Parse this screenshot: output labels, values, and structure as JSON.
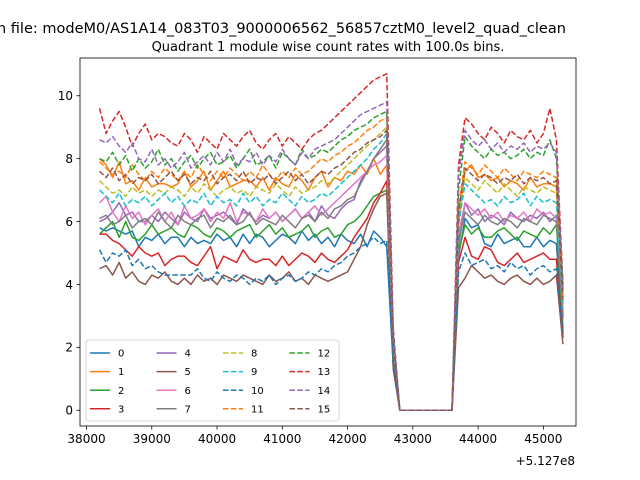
{
  "chart_data": {
    "type": "line",
    "suptitle": "n file: modeM0/AS1A14_083T03_9000006562_56857cztM0_level2_quad_clean",
    "title": "Quadrant 1 module wise count rates with 100.0s bins.",
    "xlabel": "",
    "ylabel": "",
    "offset_label": "+5.127e8",
    "xlim": [
      37900,
      45500
    ],
    "ylim": [
      -0.5,
      11.2
    ],
    "xticks": [
      38000,
      39000,
      40000,
      41000,
      42000,
      43000,
      44000,
      45000
    ],
    "yticks": [
      0,
      2,
      4,
      6,
      8,
      10
    ],
    "legend_position": "lower-left",
    "legend_columns": 4,
    "x_start": 38200,
    "x_step": 100,
    "series": [
      {
        "name": "0",
        "color": "#1f77b4",
        "style": "solid",
        "values": [
          5.8,
          5.7,
          5.8,
          5.7,
          5.6,
          5.7,
          5.2,
          5.5,
          5.4,
          5.6,
          5.3,
          5.5,
          5.5,
          5.2,
          5.5,
          5.3,
          5.4,
          5.3,
          5.6,
          5.4,
          5.5,
          5.2,
          5.6,
          5.3,
          5.6,
          5.5,
          5.2,
          5.4,
          5.6,
          5.5,
          5.3,
          5.7,
          5.4,
          5.6,
          5.3,
          5.5,
          5.2,
          5.6,
          5.4,
          5.3,
          5.6,
          5.2,
          5.7,
          5.5,
          5.2,
          1.4,
          0,
          0,
          0,
          0,
          0,
          0,
          0,
          0,
          0,
          4.9,
          6.1,
          5.8,
          5.9,
          5.3,
          5.2,
          5.6,
          5.3,
          5.4,
          5.5,
          5.2,
          5.2,
          5.5,
          5.2,
          5.4,
          5.3,
          2.4
        ]
      },
      {
        "name": "1",
        "color": "#ff7f0e",
        "style": "solid",
        "values": [
          8.0,
          7.8,
          7.4,
          7.9,
          7.2,
          7.3,
          7.0,
          7.4,
          7.1,
          7.2,
          7.2,
          7.1,
          7.2,
          7.6,
          7.1,
          7.3,
          7.6,
          7.0,
          7.3,
          7.6,
          7.1,
          7.2,
          7.3,
          7.3,
          7.1,
          7.4,
          7.0,
          7.4,
          7.2,
          7.1,
          7.5,
          7.3,
          7.0,
          7.4,
          7.6,
          7.1,
          7.4,
          7.3,
          7.6,
          7.5,
          7.8,
          7.5,
          8.0,
          7.5,
          7.8,
          2.0,
          0,
          0,
          0,
          0,
          0,
          0,
          0,
          0,
          0,
          6.0,
          7.6,
          7.8,
          7.4,
          7.5,
          7.3,
          7.4,
          7.1,
          7.3,
          7.2,
          7.0,
          7.4,
          7.1,
          7.2,
          7.2,
          7.1,
          3.0
        ]
      },
      {
        "name": "2",
        "color": "#2ca02c",
        "style": "solid",
        "values": [
          5.6,
          5.8,
          6.0,
          5.5,
          6.0,
          5.5,
          5.4,
          5.6,
          5.9,
          5.6,
          5.7,
          5.8,
          5.6,
          5.5,
          5.9,
          5.8,
          5.6,
          5.5,
          5.8,
          5.7,
          5.5,
          5.7,
          5.8,
          5.9,
          5.5,
          5.7,
          5.9,
          5.6,
          5.8,
          5.5,
          5.6,
          5.7,
          5.9,
          5.5,
          5.7,
          5.8,
          5.5,
          5.6,
          5.9,
          6.0,
          6.2,
          6.5,
          6.8,
          6.9,
          7.0,
          1.6,
          0,
          0,
          0,
          0,
          0,
          0,
          0,
          0,
          0,
          5.0,
          5.9,
          5.6,
          5.8,
          5.5,
          5.5,
          5.7,
          5.8,
          5.6,
          5.4,
          5.7,
          5.6,
          5.5,
          5.8,
          5.6,
          5.9,
          2.6
        ]
      },
      {
        "name": "3",
        "color": "#d62728",
        "style": "solid",
        "values": [
          5.6,
          5.6,
          5.4,
          5.3,
          5.1,
          4.9,
          5.2,
          5.0,
          4.9,
          5.0,
          4.6,
          4.8,
          4.9,
          4.9,
          4.7,
          4.6,
          4.9,
          5.2,
          4.5,
          4.9,
          4.8,
          4.7,
          5.1,
          4.8,
          4.7,
          4.8,
          4.8,
          4.6,
          4.9,
          4.6,
          4.8,
          5.0,
          4.9,
          4.7,
          5.0,
          4.8,
          4.7,
          4.9,
          5.1,
          5.5,
          5.8,
          6.1,
          6.6,
          6.9,
          7.3,
          1.7,
          0,
          0,
          0,
          0,
          0,
          0,
          0,
          0,
          0,
          4.7,
          5.5,
          4.9,
          4.8,
          5.2,
          5.1,
          4.7,
          4.6,
          4.8,
          5.0,
          4.7,
          4.8,
          4.9,
          5.0,
          4.8,
          4.8,
          2.3
        ]
      },
      {
        "name": "4",
        "color": "#9467bd",
        "style": "solid",
        "values": [
          6.0,
          6.1,
          6.3,
          6.6,
          6.2,
          6.3,
          6.0,
          6.0,
          6.2,
          6.0,
          6.3,
          6.1,
          5.9,
          6.3,
          6.1,
          6.0,
          6.4,
          6.1,
          6.2,
          6.3,
          6.1,
          5.9,
          6.4,
          6.2,
          6.0,
          6.2,
          6.1,
          6.3,
          6.0,
          6.2,
          6.4,
          6.1,
          6.3,
          6.0,
          6.5,
          6.2,
          6.1,
          6.4,
          6.6,
          6.7,
          7.3,
          7.6,
          8.0,
          8.2,
          8.4,
          2.0,
          0,
          0,
          0,
          0,
          0,
          0,
          0,
          0,
          0,
          5.2,
          6.6,
          6.2,
          6.4,
          6.0,
          6.2,
          6.1,
          5.9,
          6.3,
          6.1,
          6.0,
          6.2,
          6.1,
          6.3,
          6.0,
          6.2,
          2.9
        ]
      },
      {
        "name": "5",
        "color": "#8c564b",
        "style": "solid",
        "values": [
          4.5,
          4.6,
          4.3,
          4.7,
          4.2,
          4.4,
          4.1,
          4.0,
          4.3,
          4.2,
          4.4,
          4.1,
          4.0,
          4.2,
          4.0,
          4.3,
          4.1,
          4.2,
          4.0,
          4.3,
          4.2,
          4.1,
          4.3,
          4.2,
          4.1,
          4.0,
          4.3,
          4.1,
          4.2,
          4.4,
          4.1,
          4.2,
          4.0,
          4.3,
          4.2,
          4.1,
          4.2,
          4.3,
          4.4,
          4.8,
          5.2,
          5.9,
          6.4,
          6.8,
          6.9,
          1.3,
          0,
          0,
          0,
          0,
          0,
          0,
          0,
          0,
          0,
          3.9,
          4.2,
          4.6,
          4.4,
          4.2,
          4.3,
          4.1,
          4.0,
          4.2,
          4.3,
          4.1,
          4.0,
          4.2,
          4.0,
          4.1,
          4.3,
          2.1
        ]
      },
      {
        "name": "6",
        "color": "#e377c2",
        "style": "solid",
        "values": [
          6.6,
          6.8,
          6.3,
          6.0,
          6.5,
          6.1,
          6.3,
          5.9,
          6.2,
          6.4,
          6.0,
          6.3,
          5.9,
          6.5,
          6.1,
          6.2,
          6.4,
          6.0,
          6.3,
          6.1,
          6.6,
          6.0,
          6.3,
          6.2,
          6.0,
          6.4,
          6.1,
          6.3,
          6.0,
          6.2,
          6.4,
          6.1,
          6.3,
          6.5,
          6.2,
          6.4,
          6.6,
          6.8,
          7.0,
          7.2,
          7.4,
          7.6,
          7.8,
          7.9,
          8.1,
          2.0,
          0,
          0,
          0,
          0,
          0,
          0,
          0,
          0,
          0,
          5.6,
          6.6,
          6.4,
          6.2,
          6.4,
          6.1,
          6.3,
          6.0,
          6.2,
          6.1,
          6.3,
          6.0,
          6.4,
          6.2,
          6.3,
          6.1,
          3.2
        ]
      },
      {
        "name": "7",
        "color": "#7f7f7f",
        "style": "solid",
        "values": [
          6.1,
          6.2,
          5.9,
          6.0,
          6.2,
          5.8,
          6.0,
          6.1,
          5.9,
          6.3,
          6.0,
          5.8,
          6.2,
          6.0,
          5.9,
          6.1,
          6.2,
          5.8,
          6.1,
          6.0,
          6.2,
          5.9,
          6.0,
          6.3,
          5.9,
          6.1,
          6.0,
          5.9,
          6.2,
          6.0,
          5.8,
          6.1,
          6.2,
          6.0,
          6.3,
          6.1,
          6.4,
          6.5,
          6.7,
          6.8,
          7.2,
          7.6,
          8.0,
          8.3,
          8.6,
          2.0,
          0,
          0,
          0,
          0,
          0,
          0,
          0,
          0,
          0,
          5.4,
          6.3,
          6.1,
          5.9,
          6.2,
          6.0,
          5.9,
          6.1,
          6.0,
          5.8,
          6.1,
          6.0,
          5.9,
          6.2,
          6.1,
          6.0,
          3.0
        ]
      },
      {
        "name": "8",
        "color": "#bcbd22",
        "style": "dashed",
        "values": [
          7.3,
          7.1,
          6.9,
          7.0,
          6.8,
          7.1,
          6.9,
          7.0,
          6.8,
          7.0,
          6.9,
          7.1,
          7.0,
          6.8,
          7.1,
          6.9,
          7.2,
          7.0,
          6.8,
          7.0,
          7.1,
          6.9,
          7.0,
          6.8,
          7.1,
          7.0,
          6.9,
          7.2,
          7.0,
          6.8,
          7.1,
          6.9,
          7.0,
          7.1,
          7.3,
          7.2,
          7.4,
          7.6,
          7.8,
          8.0,
          8.2,
          8.4,
          8.6,
          8.8,
          9.0,
          2.2,
          0,
          0,
          0,
          0,
          0,
          0,
          0,
          0,
          0,
          6.2,
          7.4,
          7.2,
          7.0,
          7.3,
          7.1,
          6.9,
          7.2,
          7.0,
          6.8,
          7.1,
          7.0,
          6.9,
          7.1,
          7.0,
          6.9,
          3.3
        ]
      },
      {
        "name": "9",
        "color": "#17becf",
        "style": "dashed",
        "values": [
          7.0,
          6.8,
          6.6,
          6.9,
          6.5,
          6.7,
          6.6,
          6.8,
          6.5,
          6.7,
          6.9,
          6.6,
          6.8,
          6.5,
          6.7,
          6.6,
          6.9,
          6.5,
          6.8,
          6.6,
          6.7,
          6.5,
          6.9,
          6.6,
          6.8,
          6.5,
          6.7,
          6.6,
          6.9,
          6.7,
          6.5,
          6.8,
          6.6,
          6.7,
          6.9,
          6.8,
          7.0,
          7.2,
          7.4,
          7.6,
          7.8,
          8.0,
          8.3,
          8.5,
          8.8,
          2.1,
          0,
          0,
          0,
          0,
          0,
          0,
          0,
          0,
          0,
          5.9,
          7.2,
          7.0,
          6.8,
          6.6,
          6.7,
          6.5,
          6.8,
          6.6,
          6.7,
          6.9,
          6.5,
          6.8,
          6.6,
          6.7,
          6.6,
          3.4
        ]
      },
      {
        "name": "10",
        "color": "#1f77b4",
        "style": "dashed",
        "values": [
          5.1,
          4.7,
          5.0,
          4.9,
          5.1,
          4.6,
          4.8,
          4.5,
          4.6,
          4.4,
          4.3,
          4.3,
          4.3,
          4.3,
          4.3,
          4.5,
          4.2,
          4.1,
          4.4,
          4.2,
          4.1,
          4.3,
          4.2,
          4.0,
          4.2,
          4.1,
          4.3,
          4.0,
          4.2,
          4.3,
          4.1,
          4.2,
          4.4,
          4.3,
          4.5,
          4.4,
          4.6,
          4.7,
          4.9,
          5.0,
          5.2,
          5.3,
          5.5,
          5.3,
          5.4,
          1.5,
          0,
          0,
          0,
          0,
          0,
          0,
          0,
          0,
          0,
          4.4,
          5.0,
          4.6,
          4.7,
          4.8,
          4.5,
          4.6,
          4.4,
          4.7,
          4.5,
          4.6,
          4.3,
          4.5,
          4.6,
          4.4,
          4.5,
          2.5
        ]
      },
      {
        "name": "11",
        "color": "#ff7f0e",
        "style": "dashed",
        "values": [
          7.9,
          7.7,
          7.5,
          7.6,
          7.4,
          7.8,
          7.5,
          7.3,
          7.6,
          7.4,
          7.7,
          7.5,
          7.3,
          7.6,
          7.4,
          7.8,
          7.5,
          7.3,
          7.6,
          7.4,
          7.7,
          7.5,
          7.3,
          7.6,
          7.4,
          7.8,
          7.5,
          7.3,
          7.6,
          7.4,
          7.7,
          7.5,
          7.6,
          7.8,
          8.0,
          7.9,
          8.1,
          8.2,
          8.4,
          8.5,
          8.7,
          8.9,
          9.0,
          9.2,
          9.3,
          2.3,
          0,
          0,
          0,
          0,
          0,
          0,
          0,
          0,
          0,
          6.5,
          7.9,
          7.7,
          7.5,
          7.8,
          7.6,
          7.4,
          7.7,
          7.5,
          7.3,
          7.6,
          7.5,
          7.4,
          7.6,
          7.5,
          7.4,
          3.6
        ]
      },
      {
        "name": "12",
        "color": "#2ca02c",
        "style": "dashed",
        "values": [
          8.0,
          7.9,
          8.2,
          7.8,
          8.1,
          7.6,
          8.0,
          7.7,
          7.9,
          8.3,
          7.8,
          8.0,
          7.6,
          7.9,
          8.1,
          7.7,
          8.0,
          8.2,
          7.8,
          7.9,
          8.1,
          7.7,
          8.0,
          8.3,
          7.8,
          7.9,
          8.1,
          7.7,
          8.2,
          8.0,
          7.8,
          8.3,
          8.0,
          8.1,
          8.3,
          8.2,
          8.4,
          8.6,
          8.7,
          8.9,
          9.0,
          9.1,
          9.3,
          9.4,
          9.5,
          2.4,
          0,
          0,
          0,
          0,
          0,
          0,
          0,
          0,
          0,
          7.0,
          8.7,
          8.4,
          8.2,
          8.0,
          8.3,
          8.1,
          8.2,
          8.0,
          8.1,
          8.3,
          8.0,
          8.2,
          8.1,
          8.6,
          8.0,
          3.8
        ]
      },
      {
        "name": "13",
        "color": "#d62728",
        "style": "dashed",
        "values": [
          9.6,
          8.8,
          9.2,
          9.5,
          9.0,
          8.4,
          8.8,
          9.1,
          8.6,
          8.8,
          8.7,
          8.5,
          8.4,
          8.8,
          8.6,
          8.2,
          8.7,
          8.5,
          8.3,
          8.8,
          8.6,
          8.4,
          8.7,
          8.9,
          8.5,
          8.3,
          8.6,
          8.8,
          8.4,
          8.7,
          8.5,
          8.3,
          8.6,
          8.8,
          8.9,
          9.1,
          9.3,
          9.5,
          9.7,
          9.9,
          10.1,
          10.3,
          10.5,
          10.6,
          10.7,
          2.6,
          0,
          0,
          0,
          0,
          0,
          0,
          0,
          0,
          0,
          7.8,
          9.3,
          9.1,
          8.8,
          8.6,
          9.0,
          8.8,
          8.5,
          8.9,
          8.7,
          8.6,
          8.9,
          8.5,
          8.8,
          9.6,
          8.6,
          4.0
        ]
      },
      {
        "name": "14",
        "color": "#9467bd",
        "style": "dashed",
        "values": [
          8.6,
          8.5,
          8.7,
          8.4,
          8.2,
          8.5,
          8.0,
          7.9,
          8.3,
          7.8,
          8.0,
          7.7,
          7.9,
          8.2,
          7.7,
          7.9,
          8.1,
          7.8,
          8.2,
          7.9,
          8.3,
          7.8,
          8.0,
          7.9,
          8.2,
          7.8,
          8.1,
          7.9,
          8.3,
          8.0,
          7.8,
          8.2,
          8.0,
          8.3,
          8.4,
          8.5,
          8.6,
          8.8,
          9.0,
          9.2,
          9.4,
          9.5,
          9.6,
          9.7,
          9.8,
          2.5,
          0,
          0,
          0,
          0,
          0,
          0,
          0,
          0,
          0,
          7.5,
          8.9,
          8.6,
          8.4,
          8.6,
          8.3,
          8.5,
          8.2,
          8.4,
          8.3,
          8.5,
          8.2,
          8.4,
          8.3,
          8.5,
          8.2,
          3.9
        ]
      },
      {
        "name": "15",
        "color": "#8c564b",
        "style": "dashed",
        "values": [
          7.6,
          7.4,
          7.7,
          7.3,
          7.5,
          7.2,
          7.4,
          7.3,
          7.5,
          7.2,
          7.4,
          7.6,
          7.3,
          7.5,
          7.2,
          7.4,
          7.3,
          7.6,
          7.2,
          7.4,
          7.5,
          7.3,
          7.6,
          7.2,
          7.4,
          7.3,
          7.5,
          7.2,
          7.4,
          7.6,
          7.3,
          7.5,
          7.2,
          7.4,
          7.6,
          7.5,
          7.7,
          7.8,
          8.0,
          8.2,
          8.3,
          8.5,
          8.6,
          8.7,
          8.9,
          2.2,
          0,
          0,
          0,
          0,
          0,
          0,
          0,
          0,
          0,
          6.3,
          7.7,
          7.5,
          7.3,
          7.5,
          7.4,
          7.2,
          7.4,
          7.3,
          7.5,
          7.2,
          7.4,
          7.3,
          7.4,
          7.2,
          7.3,
          3.5
        ]
      }
    ]
  }
}
